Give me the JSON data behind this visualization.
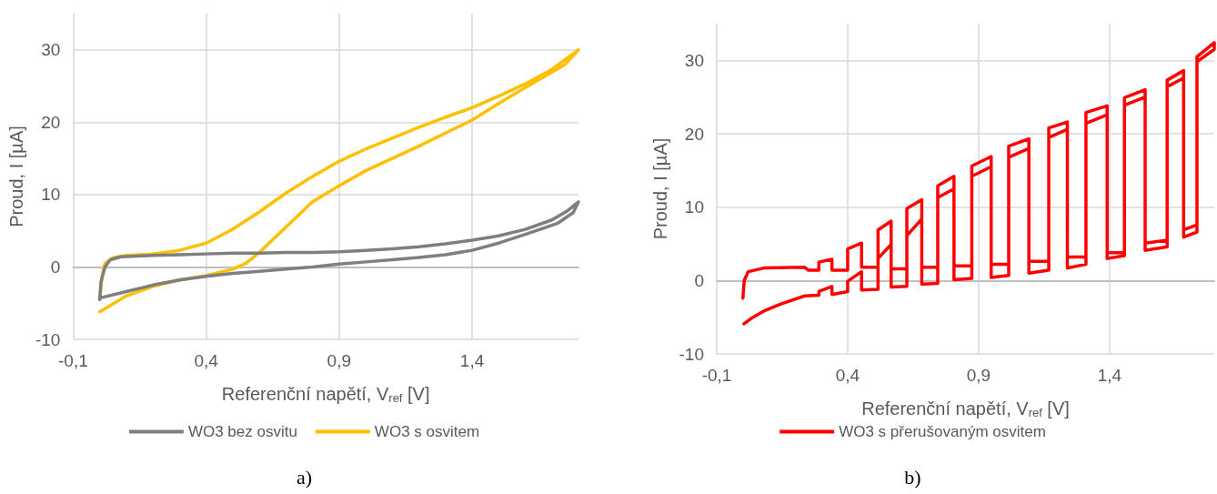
{
  "chart_data": [
    {
      "type": "line",
      "xlabel": "Referenční napětí, V$_{ref}$ [V]",
      "ylabel": "Proud, I [µA]",
      "annotations": [
        "a)"
      ],
      "xlim": [
        -0.1,
        1.8
      ],
      "xticks": [
        {
          "value": -0.1,
          "label": "-0,1"
        },
        {
          "value": 0.4,
          "label": "0,4"
        },
        {
          "value": 0.9,
          "label": "0,9"
        },
        {
          "value": 1.4,
          "label": "1,4"
        }
      ],
      "ylim": [
        -10,
        35
      ],
      "yticks": [
        -10,
        0,
        10,
        20,
        30
      ],
      "grid": true,
      "legend": "bottom",
      "series": [
        {
          "name": "WO3 bez osvitu",
          "color": "#7f7f7f",
          "x": [
            0.0,
            0.005,
            0.02,
            0.04,
            0.08,
            0.2,
            0.3,
            0.4,
            0.5,
            0.6,
            0.7,
            0.8,
            0.9,
            1.0,
            1.1,
            1.2,
            1.3,
            1.4,
            1.5,
            1.6,
            1.7,
            1.76,
            1.8,
            1.78,
            1.72,
            1.6,
            1.5,
            1.4,
            1.3,
            1.2,
            1.1,
            1.0,
            0.9,
            0.8,
            0.7,
            0.6,
            0.5,
            0.4,
            0.3,
            0.2,
            0.1,
            0.0
          ],
          "values": [
            -4.5,
            -2,
            0,
            1,
            1.4,
            1.6,
            1.7,
            1.8,
            1.9,
            1.9,
            2,
            2,
            2.1,
            2.3,
            2.5,
            2.8,
            3.2,
            3.7,
            4.3,
            5.2,
            6.5,
            7.8,
            9,
            7.5,
            6,
            4.5,
            3.3,
            2.3,
            1.7,
            1.3,
            1,
            0.7,
            0.4,
            0,
            -0.3,
            -0.6,
            -0.9,
            -1.3,
            -1.8,
            -2.5,
            -3.4,
            -4.3
          ]
        },
        {
          "name": "WO3 s osvitem",
          "color": "#ffc000",
          "x": [
            0.0,
            0.01,
            0.02,
            0.05,
            0.1,
            0.2,
            0.3,
            0.4,
            0.5,
            0.6,
            0.7,
            0.8,
            0.9,
            1.0,
            1.1,
            1.2,
            1.3,
            1.4,
            1.5,
            1.6,
            1.7,
            1.8,
            1.75,
            1.6,
            1.5,
            1.4,
            1.2,
            1.0,
            0.9,
            0.8,
            0.7,
            0.6,
            0.55,
            0.5,
            0.4,
            0.3,
            0.2,
            0.1,
            0.0
          ],
          "values": [
            -4.5,
            -1,
            0.5,
            1.3,
            1.6,
            1.8,
            2.3,
            3.3,
            5.2,
            7.6,
            10.2,
            12.5,
            14.6,
            16.3,
            17.8,
            19.3,
            20.7,
            22,
            23.6,
            25.3,
            27.3,
            30,
            28,
            24.8,
            22.6,
            20.3,
            16.7,
            13.3,
            11.2,
            9,
            5.5,
            2,
            0.5,
            -0.3,
            -1.2,
            -1.8,
            -2.7,
            -4,
            -6.2
          ]
        }
      ]
    },
    {
      "type": "line",
      "xlabel": "Referenční napětí, V$_{ref}$ [V]",
      "ylabel": "Proud, I [µA]",
      "annotations": [
        "b)"
      ],
      "xlim": [
        -0.1,
        1.8
      ],
      "xticks": [
        {
          "value": -0.1,
          "label": "-0,1"
        },
        {
          "value": 0.4,
          "label": "0,4"
        },
        {
          "value": 0.9,
          "label": "0,9"
        },
        {
          "value": 1.4,
          "label": "1,4"
        }
      ],
      "ylim": [
        -10,
        35
      ],
      "yticks": [
        -10,
        0,
        10,
        20,
        30
      ],
      "grid": true,
      "legend": "bottom",
      "series": [
        {
          "name": "WO3 s přerušovaným osvitem",
          "color": "#ff0000",
          "x": [
            0.0,
            0.005,
            0.02,
            0.08,
            0.236,
            0.25,
            0.29,
            0.29,
            0.34,
            0.34,
            0.4,
            0.4,
            0.453,
            0.453,
            0.516,
            0.516,
            0.566,
            0.566,
            0.626,
            0.626,
            0.683,
            0.683,
            0.744,
            0.744,
            0.806,
            0.806,
            0.874,
            0.874,
            0.948,
            0.948,
            1.015,
            1.015,
            1.092,
            1.092,
            1.168,
            1.168,
            1.239,
            1.239,
            1.31,
            1.31,
            1.391,
            1.391,
            1.457,
            1.457,
            1.536,
            1.536,
            1.62,
            1.62,
            1.683,
            1.683,
            1.734,
            1.734,
            1.8,
            1.8,
            1.734,
            1.734,
            1.683,
            1.683,
            1.62,
            1.62,
            1.536,
            1.536,
            1.457,
            1.457,
            1.391,
            1.391,
            1.31,
            1.31,
            1.239,
            1.239,
            1.168,
            1.168,
            1.092,
            1.092,
            1.015,
            1.015,
            0.948,
            0.948,
            0.874,
            0.874,
            0.806,
            0.806,
            0.744,
            0.744,
            0.683,
            0.683,
            0.626,
            0.626,
            0.566,
            0.566,
            0.516,
            0.516,
            0.453,
            0.453,
            0.4,
            0.4,
            0.34,
            0.34,
            0.29,
            0.29,
            0.236,
            0.145,
            0.078,
            0.03,
            0.004
          ],
          "values": [
            -2.4,
            0,
            1.2,
            1.7,
            1.8,
            1.4,
            1.4,
            2.5,
            2.9,
            1.4,
            1.4,
            4.3,
            5.1,
            1.8,
            1.8,
            6.9,
            8.1,
            1.6,
            1.6,
            9.8,
            11,
            1.8,
            1.8,
            12.9,
            14.2,
            2.0,
            2.0,
            15.6,
            16.9,
            2.2,
            2.2,
            18.3,
            19.3,
            2.6,
            2.6,
            20.8,
            21.6,
            3.2,
            3.2,
            22.9,
            23.8,
            3.8,
            3.8,
            24.9,
            26,
            5.1,
            5.5,
            27.3,
            28.6,
            6.9,
            7.6,
            30.5,
            32.4,
            31.5,
            29.8,
            6.6,
            5.9,
            27.6,
            26.4,
            4.6,
            4.1,
            25,
            23.9,
            3.4,
            3.0,
            22.6,
            21.4,
            2.2,
            1.7,
            20.6,
            19.5,
            1.4,
            1.0,
            18,
            16.8,
            0.7,
            0.4,
            15.5,
            14.2,
            0.3,
            0.1,
            12.5,
            11.3,
            -0.4,
            -0.5,
            8.4,
            6.1,
            -0.8,
            -0.9,
            4.9,
            3.0,
            -1.2,
            -1.3,
            1.2,
            -0.1,
            -1.5,
            -1.9,
            -0.8,
            -1.5,
            -2.0,
            -2.1,
            -3.2,
            -4.2,
            -5.2,
            -5.9
          ]
        }
      ]
    }
  ]
}
